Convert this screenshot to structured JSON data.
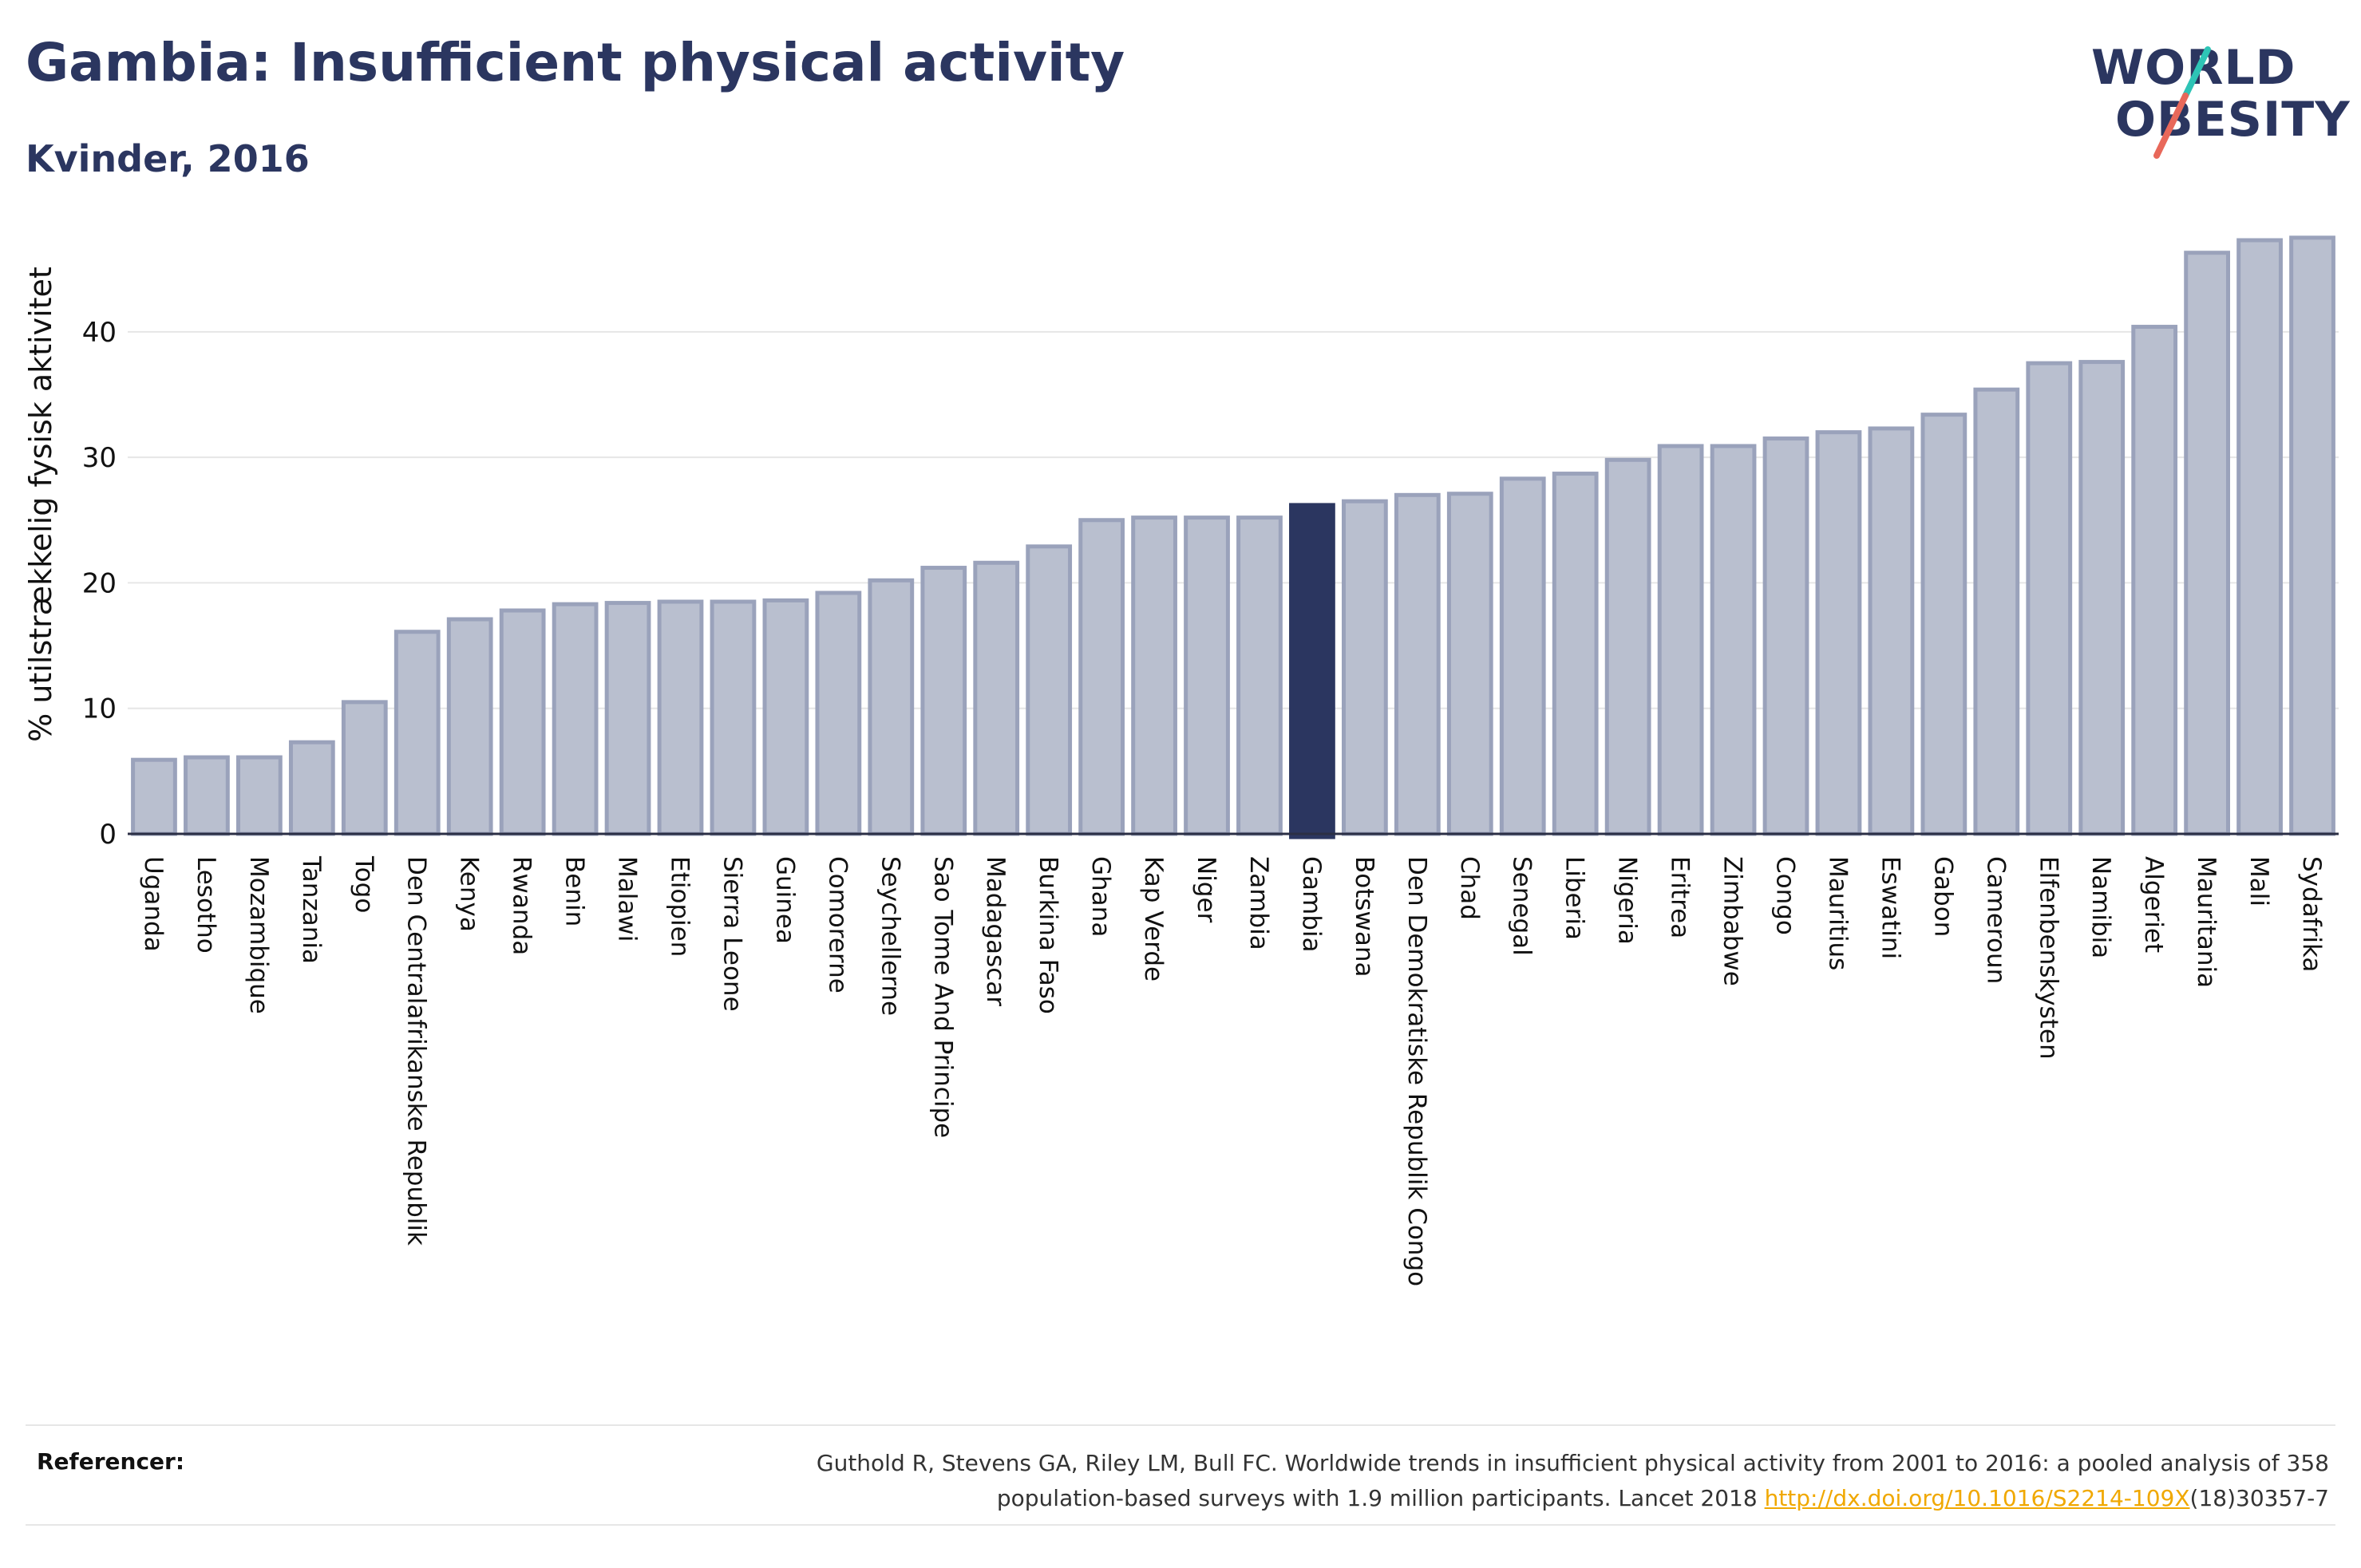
{
  "header": {
    "title": "Gambia: Insufficient physical activity",
    "subtitle": "Kvinder, 2016"
  },
  "logo": {
    "line1": "WORLD",
    "line2": "OBESITY",
    "slash_colors": [
      "#2ec4b6",
      "#e8685a"
    ]
  },
  "colors": {
    "bar": "#b9bfcf",
    "bar_border": "#9aa2bb",
    "highlight": "#2b3660",
    "text": "#2b3660",
    "link": "#f0a800"
  },
  "chart_data": {
    "type": "bar",
    "ylabel": "% utilstrækkelig fysisk aktivitet",
    "ylim": [
      0,
      48
    ],
    "yticks": [
      0,
      10,
      20,
      30,
      40
    ],
    "grid": true,
    "highlight": "Gambia",
    "categories": [
      "Uganda",
      "Lesotho",
      "Mozambique",
      "Tanzania",
      "Togo",
      "Den Centralafrikanske Republik",
      "Kenya",
      "Rwanda",
      "Benin",
      "Malawi",
      "Etiopien",
      "Sierra Leone",
      "Guinea",
      "Comorerne",
      "Seychellerne",
      "Sao Tome And Principe",
      "Madagascar",
      "Burkina Faso",
      "Ghana",
      "Kap Verde",
      "Niger",
      "Zambia",
      "Gambia",
      "Botswana",
      "Den Demokratiske Republik Congo",
      "Chad",
      "Senegal",
      "Liberia",
      "Nigeria",
      "Eritrea",
      "Zimbabwe",
      "Congo",
      "Mauritius",
      "Eswatini",
      "Gabon",
      "Cameroun",
      "Elfenbenskysten",
      "Namibia",
      "Algeriet",
      "Mauritania",
      "Mali",
      "Sydafrika"
    ],
    "values": [
      5.9,
      6.1,
      6.1,
      7.3,
      10.5,
      16.1,
      17.1,
      17.8,
      18.3,
      18.4,
      18.5,
      18.5,
      18.6,
      19.2,
      20.2,
      21.2,
      21.6,
      22.9,
      25.0,
      25.2,
      25.2,
      25.2,
      26.2,
      26.5,
      27.0,
      27.1,
      28.3,
      28.7,
      29.8,
      30.9,
      30.9,
      31.5,
      32.0,
      32.3,
      33.4,
      35.4,
      37.5,
      37.6,
      40.4,
      46.3,
      47.3,
      47.5
    ]
  },
  "references": {
    "label": "Referencer:",
    "line1": "Guthold R, Stevens GA, Riley LM, Bull FC. Worldwide trends in insufficient physical activity from 2001 to 2016: a pooled analysis of 358",
    "line2_prefix": "population-based surveys with 1.9 million participants. Lancet 2018 ",
    "link": "http://dx.doi.org/10.1016/S2214-109X",
    "line2_suffix": "(18)30357-7"
  }
}
